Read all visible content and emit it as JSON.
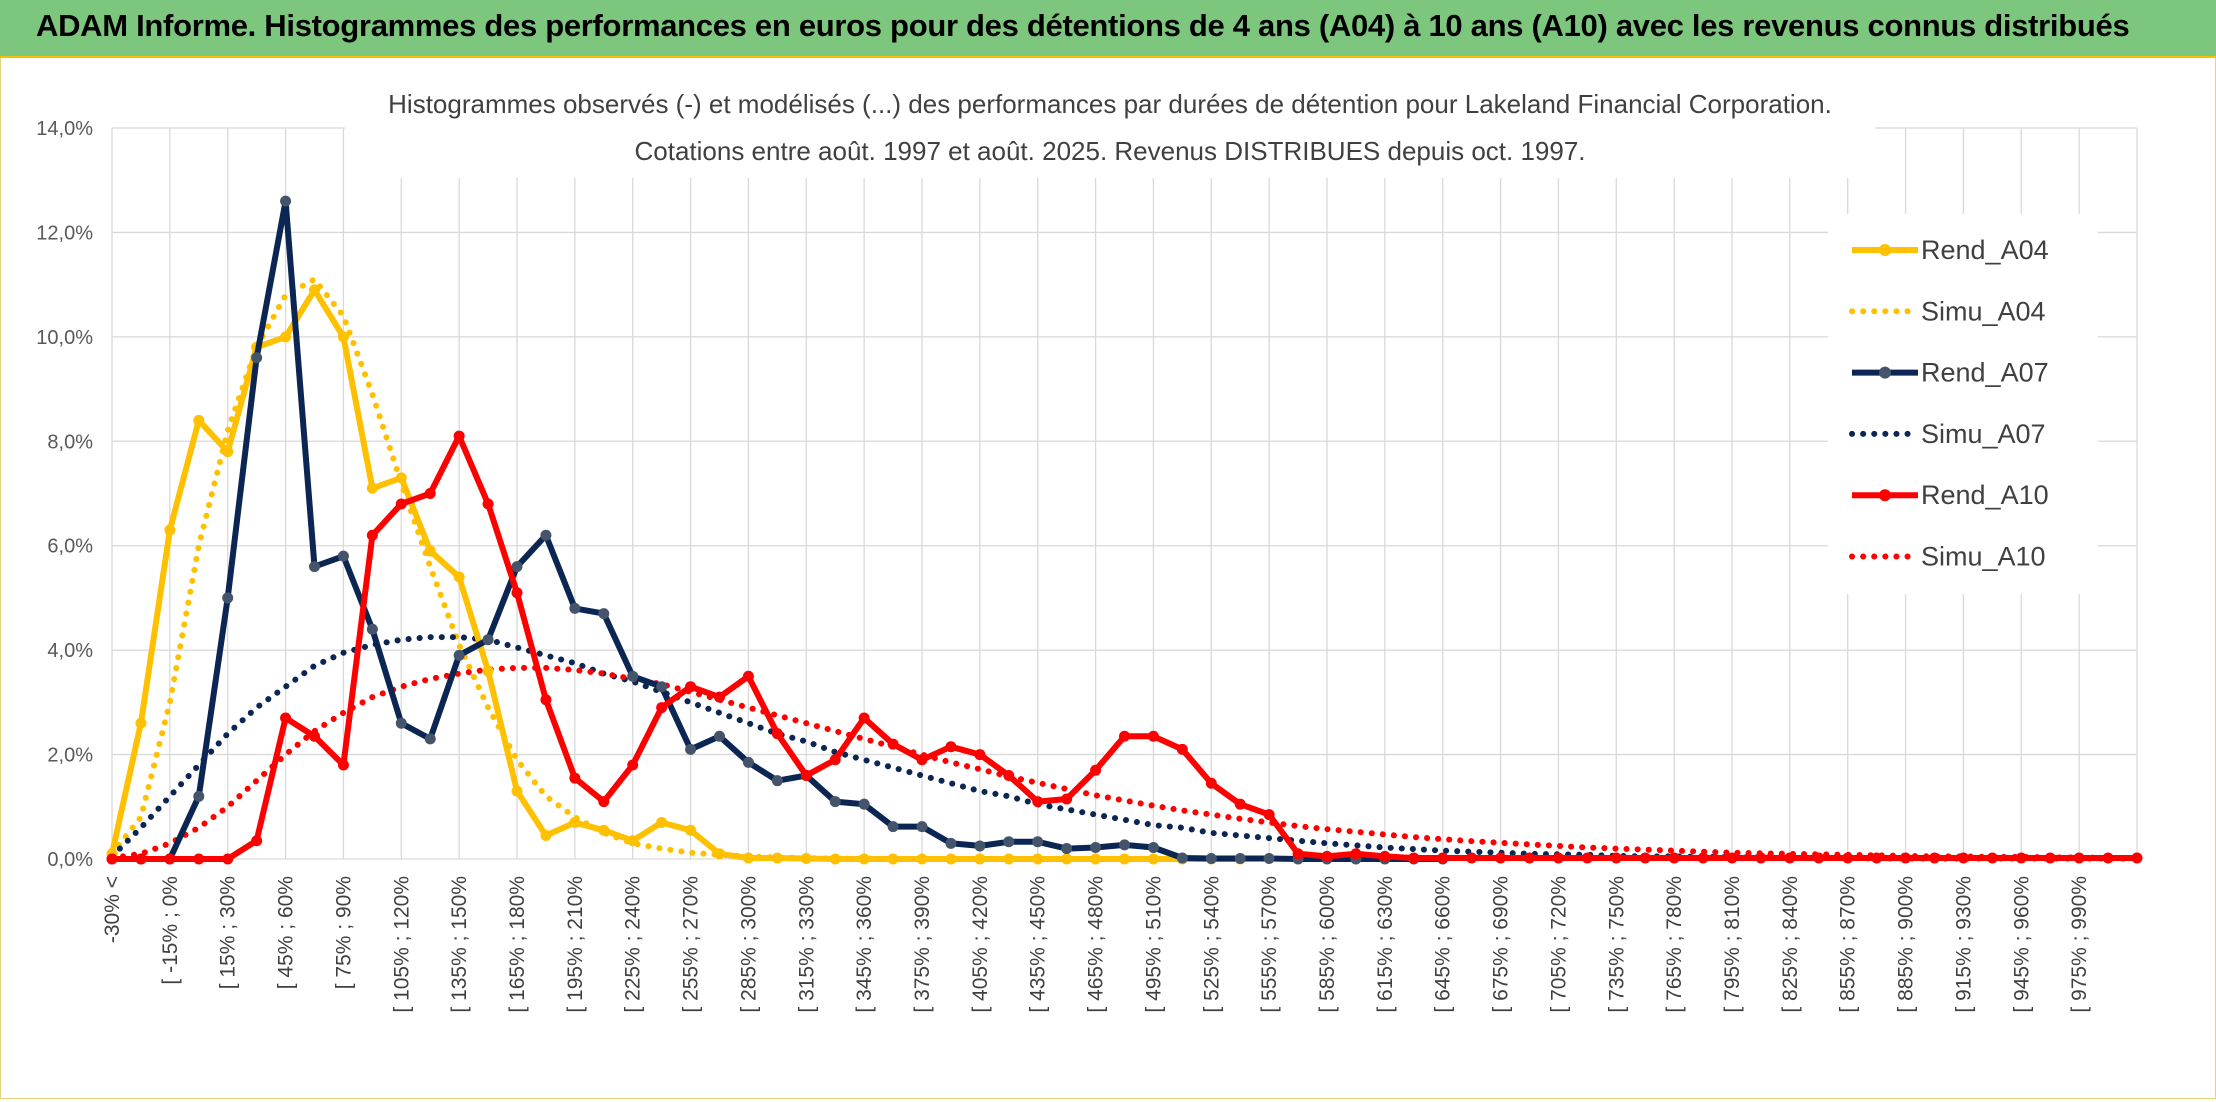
{
  "header": {
    "title": "ADAM Informe. Histogrammes des performances en euros pour des détentions de 4 ans (A04) à 10 ans (A10) avec les revenus connus distribués"
  },
  "chart_data": {
    "type": "line",
    "title": "Histogrammes observés (-) et modélisés (...) des performances par durées de détention pour Lakeland Financial Corporation.",
    "subtitle": "Cotations entre août. 1997 et août. 2025. Revenus DISTRIBUES depuis oct. 1997.",
    "xlabel": "",
    "ylabel": "",
    "ylim": [
      0,
      14
    ],
    "y_ticks": [
      "0,0%",
      "2,0%",
      "4,0%",
      "6,0%",
      "8,0%",
      "10,0%",
      "12,0%",
      "14,0%"
    ],
    "grid": true,
    "legend_position": "right",
    "x_tick_labels": [
      "-30% <",
      "[ -15% ; 0%",
      "[ 15% ; 30%",
      "[ 45% ; 60%",
      "[ 75% ; 90%",
      "[ 105% ; 120%",
      "[ 135% ; 150%",
      "[ 165% ; 180%",
      "[ 195% ; 210%",
      "[ 225% ; 240%",
      "[ 255% ; 270%",
      "[ 285% ; 300%",
      "[ 315% ; 330%",
      "[ 345% ; 360%",
      "[ 375% ; 390%",
      "[ 405% ; 420%",
      "[ 435% ; 450%",
      "[ 465% ; 480%",
      "[ 495% ; 510%",
      "[ 525% ; 540%",
      "[ 555% ; 570%",
      "[ 585% ; 600%",
      "[ 615% ; 630%",
      "[ 645% ; 660%",
      "[ 675% ; 690%",
      "[ 705% ; 720%",
      "[ 735% ; 750%",
      "[ 765% ; 780%",
      "[ 795% ; 810%",
      "[ 825% ; 840%",
      "[ 855% ; 870%",
      "[ 885% ; 900%",
      "[ 915% ; 930%",
      "[ 945% ; 960%",
      "[ 975% ; 990%"
    ],
    "series": [
      {
        "name": "Rend_A04",
        "style": "solid",
        "color": "#ffc000",
        "values": [
          0.1,
          2.6,
          6.3,
          8.4,
          7.8,
          9.8,
          10.0,
          10.9,
          10.0,
          7.1,
          7.3,
          5.9,
          5.4,
          3.6,
          1.3,
          0.45,
          0.7,
          0.55,
          0.35,
          0.7,
          0.55,
          0.1,
          0.02,
          0.02,
          0.01,
          0,
          0,
          0,
          0,
          0,
          0,
          0,
          0,
          0,
          0,
          0,
          0,
          0,
          0,
          0
        ]
      },
      {
        "name": "Simu_A04",
        "style": "dotted",
        "color": "#ffc000",
        "values": [
          0.1,
          0.8,
          3.0,
          6.0,
          8.2,
          9.8,
          10.8,
          11.1,
          10.4,
          8.9,
          7.2,
          5.6,
          4.1,
          2.9,
          1.9,
          1.2,
          0.8,
          0.5,
          0.3,
          0.2,
          0.12,
          0.08,
          0.05,
          0.03,
          0.02,
          0.01,
          0.01,
          0,
          0,
          0,
          0,
          0,
          0,
          0,
          0,
          0,
          0,
          0,
          0,
          0
        ]
      },
      {
        "name": "Rend_A07",
        "style": "solid",
        "color": "#0c2654",
        "values": [
          0,
          0,
          0,
          1.2,
          5.0,
          9.6,
          12.6,
          5.6,
          5.8,
          4.4,
          2.6,
          2.3,
          3.9,
          4.2,
          5.6,
          6.2,
          4.8,
          4.7,
          3.5,
          3.3,
          2.1,
          2.35,
          1.85,
          1.5,
          1.6,
          1.1,
          1.05,
          0.62,
          0.62,
          0.3,
          0.25,
          0.33,
          0.33,
          0.2,
          0.22,
          0.27,
          0.22,
          0.02,
          0.01,
          0.01,
          0.01,
          0,
          0,
          0,
          0,
          0,
          0
        ]
      },
      {
        "name": "Simu_A07",
        "style": "dotted",
        "color": "#0c2654",
        "values": [
          0.05,
          0.6,
          1.2,
          1.8,
          2.4,
          2.9,
          3.3,
          3.7,
          3.95,
          4.1,
          4.2,
          4.25,
          4.25,
          4.2,
          4.05,
          3.9,
          3.75,
          3.55,
          3.4,
          3.2,
          3.0,
          2.8,
          2.6,
          2.4,
          2.25,
          2.05,
          1.9,
          1.75,
          1.6,
          1.45,
          1.3,
          1.2,
          1.05,
          0.95,
          0.85,
          0.75,
          0.65,
          0.6,
          0.5,
          0.45,
          0.4,
          0.35,
          0.3,
          0.26,
          0.22,
          0.19,
          0.16,
          0.14,
          0.12,
          0.1,
          0.09,
          0.08,
          0.06,
          0.05,
          0.05,
          0.04,
          0.03,
          0.03,
          0.02,
          0.02,
          0.02,
          0.01,
          0.01,
          0.01,
          0.01,
          0.01,
          0.01,
          0.01,
          0.01,
          0.01,
          0.01
        ]
      },
      {
        "name": "Rend_A10",
        "style": "solid",
        "color": "#ff0000",
        "values": [
          0,
          0,
          0,
          0,
          0,
          0.35,
          2.7,
          2.35,
          1.8,
          6.2,
          6.8,
          7.0,
          8.1,
          6.8,
          5.1,
          3.05,
          1.55,
          1.1,
          1.8,
          2.9,
          3.3,
          3.1,
          3.5,
          2.4,
          1.6,
          1.9,
          2.7,
          2.2,
          1.9,
          2.15,
          2.0,
          1.6,
          1.1,
          1.15,
          1.7,
          2.35,
          2.35,
          2.1,
          1.45,
          1.05,
          0.85,
          0.1,
          0.05,
          0.1,
          0.05,
          0.02,
          0.02,
          0.02,
          0.02,
          0.02,
          0.02,
          0.02,
          0.02,
          0.02,
          0.02,
          0.02,
          0.02,
          0.02,
          0.02,
          0.02,
          0.02,
          0.02,
          0.02,
          0.02,
          0.02,
          0.02,
          0.02,
          0.02,
          0.02,
          0.02,
          0.02
        ]
      },
      {
        "name": "Simu_A10",
        "style": "dotted",
        "color": "#ff0000",
        "values": [
          0.02,
          0.1,
          0.3,
          0.6,
          1.0,
          1.5,
          2.0,
          2.45,
          2.8,
          3.1,
          3.3,
          3.45,
          3.55,
          3.63,
          3.66,
          3.66,
          3.62,
          3.55,
          3.45,
          3.35,
          3.2,
          3.05,
          2.9,
          2.75,
          2.6,
          2.45,
          2.3,
          2.15,
          2.0,
          1.85,
          1.72,
          1.58,
          1.46,
          1.34,
          1.22,
          1.12,
          1.02,
          0.93,
          0.85,
          0.77,
          0.7,
          0.63,
          0.57,
          0.52,
          0.47,
          0.42,
          0.38,
          0.34,
          0.31,
          0.28,
          0.25,
          0.22,
          0.2,
          0.18,
          0.16,
          0.14,
          0.12,
          0.11,
          0.1,
          0.09,
          0.08,
          0.07,
          0.06,
          0.05,
          0.05,
          0.04,
          0.04,
          0.03,
          0.03,
          0.02,
          0.02
        ]
      }
    ],
    "x_count": 71
  }
}
